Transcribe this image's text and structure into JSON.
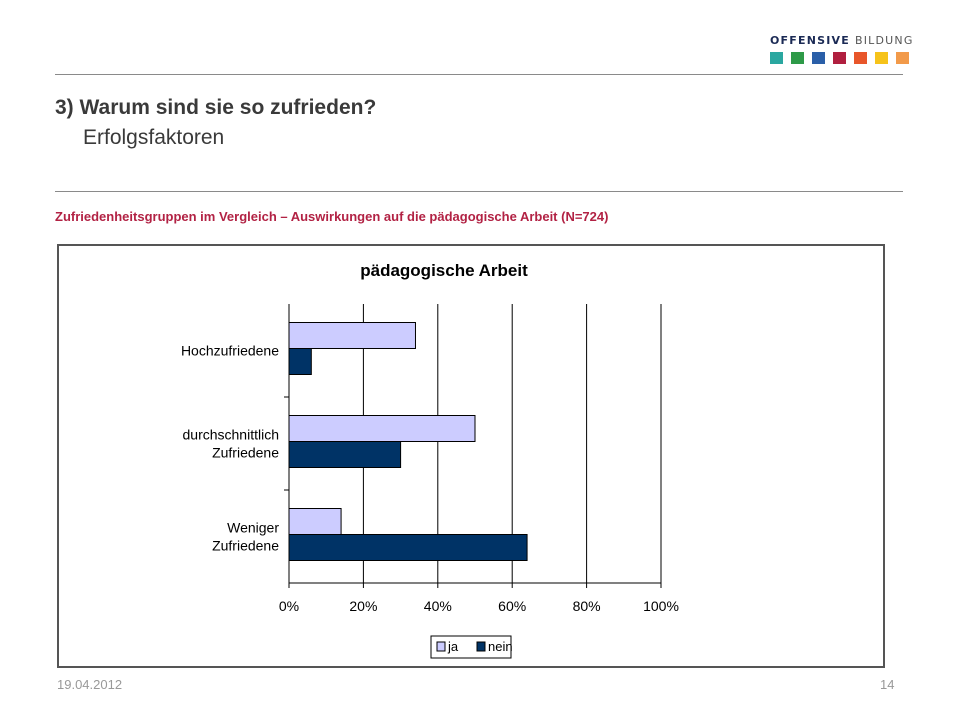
{
  "logo": {
    "word_bold": "OFFENSIVE",
    "word_light": "BILDUNG",
    "square_colors": [
      "#2aa7a0",
      "#2e9a48",
      "#2a5fa8",
      "#b01f3f",
      "#e8562a",
      "#f6c31a",
      "#f29a4a"
    ]
  },
  "header": {
    "title": "3) Warum sind sie so zufrieden?",
    "subtitle": "Erfolgsfaktoren"
  },
  "caption": "Zufriedenheitsgruppen im Vergleich – Auswirkungen auf die pädagogische Arbeit (N=724)",
  "footer": {
    "date": "19.04.2012",
    "page": "14"
  },
  "colors": {
    "ja": "#ccccff",
    "nein": "#003366",
    "title_accent": "#b22244"
  },
  "chart_data": {
    "type": "bar",
    "orientation": "horizontal",
    "title": "pädagogische Arbeit",
    "categories": [
      [
        "Hochzufriedene"
      ],
      [
        "durchschnittlich",
        "Zufriedene"
      ],
      [
        "Weniger",
        "Zufriedene"
      ]
    ],
    "series": [
      {
        "name": "ja",
        "values": [
          34,
          50,
          14
        ]
      },
      {
        "name": "nein",
        "values": [
          6,
          30,
          64
        ]
      }
    ],
    "xlim": [
      0,
      100
    ],
    "xticks": [
      "0%",
      "20%",
      "40%",
      "60%",
      "80%",
      "100%"
    ],
    "xlabel": "",
    "ylabel": "",
    "grid": "vertical",
    "legend": "bottom"
  }
}
